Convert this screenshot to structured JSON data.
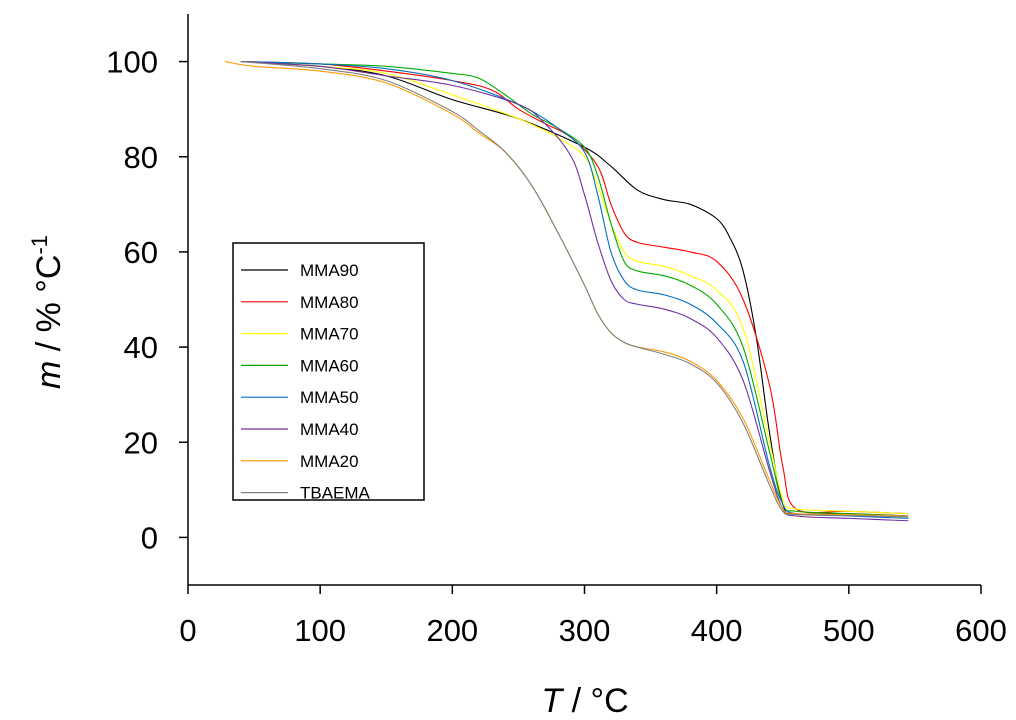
{
  "chart_data": {
    "type": "line",
    "xlabel_symbol": "T",
    "xlabel_unit": " / °C",
    "ylabel_symbol": "m",
    "ylabel_unit": " / % °C",
    "ylabel_superscript": "-1",
    "xlim": [
      0,
      600
    ],
    "ylim": [
      -10,
      110
    ],
    "x_ticks": [
      0,
      100,
      200,
      300,
      400,
      500,
      600
    ],
    "y_ticks": [
      0,
      20,
      40,
      60,
      80,
      100
    ],
    "grid": false,
    "legend_position": "left",
    "series": [
      {
        "name": "MMA90",
        "color": "#000000",
        "x": [
          40,
          100,
          150,
          200,
          250,
          300,
          320,
          340,
          360,
          380,
          400,
          410,
          420,
          430,
          440,
          450,
          460,
          500,
          545
        ],
        "y": [
          100,
          99,
          97,
          92,
          88,
          82,
          78,
          73,
          71,
          70,
          67,
          63,
          56,
          42,
          22,
          7,
          5,
          5,
          4.5
        ]
      },
      {
        "name": "MMA80",
        "color": "#ff0000",
        "x": [
          40,
          100,
          150,
          200,
          230,
          250,
          270,
          290,
          310,
          320,
          330,
          340,
          360,
          380,
          400,
          420,
          440,
          450,
          460,
          500,
          545
        ],
        "y": [
          100,
          99.5,
          98,
          96,
          94,
          90,
          87,
          84,
          78,
          70,
          64,
          62,
          61,
          60,
          58,
          50,
          32,
          15,
          6,
          5.5,
          5
        ]
      },
      {
        "name": "MMA70",
        "color": "#ffff00",
        "x": [
          40,
          100,
          150,
          200,
          250,
          280,
          300,
          310,
          320,
          330,
          340,
          360,
          380,
          400,
          420,
          440,
          450,
          460,
          500,
          545
        ],
        "y": [
          100,
          99,
          97.5,
          93,
          88,
          84,
          80,
          74,
          66,
          60,
          58,
          57,
          55,
          52,
          44,
          20,
          8,
          6,
          5.5,
          5
        ]
      },
      {
        "name": "MMA60",
        "color": "#00aa00",
        "x": [
          40,
          100,
          150,
          200,
          220,
          240,
          260,
          280,
          300,
          310,
          320,
          330,
          340,
          360,
          380,
          400,
          420,
          440,
          450,
          460,
          500,
          545
        ],
        "y": [
          100,
          99.5,
          99,
          97.5,
          96.5,
          93,
          89,
          86,
          82,
          76,
          66,
          58,
          56,
          55,
          53,
          49,
          40,
          18,
          7,
          5.5,
          5,
          4.5
        ]
      },
      {
        "name": "MMA50",
        "color": "#0070c0",
        "x": [
          40,
          100,
          150,
          200,
          250,
          280,
          300,
          310,
          320,
          330,
          340,
          360,
          380,
          400,
          420,
          440,
          450,
          460,
          500,
          545
        ],
        "y": [
          100,
          99.5,
          98.5,
          96,
          91,
          86,
          81,
          72,
          60,
          54,
          52,
          51,
          49,
          45,
          37,
          15,
          7,
          5,
          4.5,
          4
        ]
      },
      {
        "name": "MMA40",
        "color": "#7030a0",
        "x": [
          40,
          100,
          150,
          200,
          250,
          270,
          290,
          300,
          310,
          320,
          330,
          340,
          360,
          380,
          400,
          420,
          440,
          450,
          460,
          500,
          545
        ],
        "y": [
          100,
          99,
          97,
          95,
          91,
          87,
          80,
          72,
          62,
          54,
          50,
          49,
          48,
          46,
          42,
          33,
          14,
          6,
          4.5,
          4,
          3.5
        ]
      },
      {
        "name": "MMA20",
        "color": "#ff9900",
        "x": [
          28,
          50,
          100,
          150,
          200,
          220,
          240,
          260,
          280,
          300,
          310,
          320,
          330,
          340,
          360,
          380,
          400,
          420,
          440,
          450,
          460,
          500,
          545
        ],
        "y": [
          100,
          99,
          98,
          95.5,
          89,
          85,
          81,
          74,
          64,
          53,
          47,
          43,
          41,
          40,
          39,
          37,
          33,
          25,
          12,
          6,
          5,
          4.8,
          4.5
        ]
      },
      {
        "name": "TBAEMA",
        "color": "#808080",
        "x": [
          40,
          100,
          150,
          200,
          220,
          240,
          260,
          280,
          300,
          310,
          320,
          330,
          340,
          360,
          380,
          400,
          420,
          440,
          450,
          460,
          500,
          545
        ],
        "y": [
          100,
          98.5,
          96,
          89.5,
          85.5,
          81,
          74,
          64,
          53,
          47,
          43,
          41,
          40,
          38.5,
          36.5,
          32.5,
          24,
          11,
          5.5,
          4.8,
          4.6,
          4.3
        ]
      }
    ]
  }
}
